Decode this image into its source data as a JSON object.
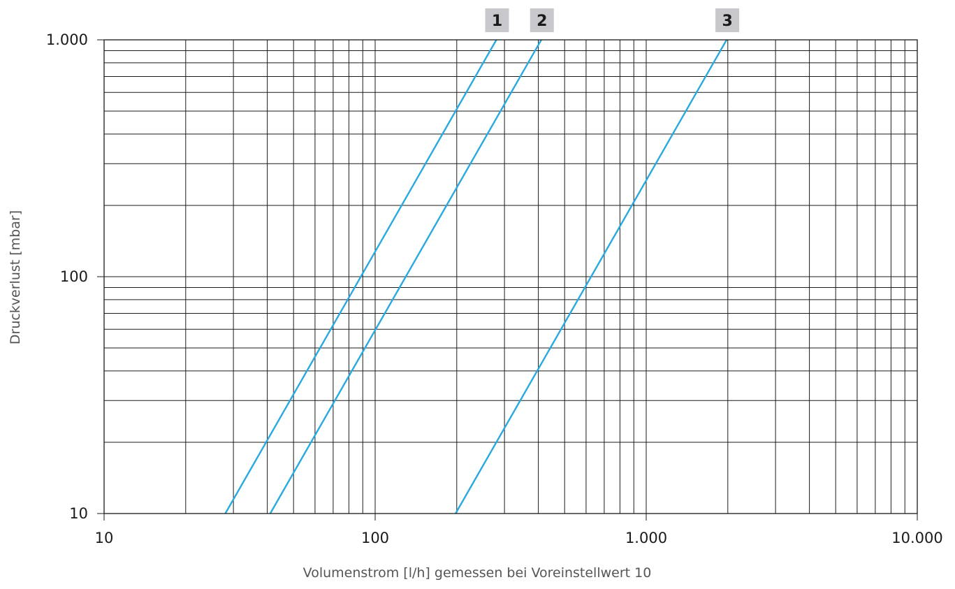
{
  "chart_data": {
    "type": "line",
    "xscale": "log",
    "yscale": "log",
    "xlabel": "Volumenstrom [l/h] gemessen bei Voreinstellwert 10",
    "ylabel": "Druckverlust [mbar]",
    "xlim": [
      10,
      10000
    ],
    "ylim": [
      10,
      1000
    ],
    "grid": true,
    "x_ticks": [
      {
        "value": 10,
        "label": "10"
      },
      {
        "value": 100,
        "label": "100"
      },
      {
        "value": 1000,
        "label": "1.000"
      },
      {
        "value": 10000,
        "label": "10.000"
      }
    ],
    "y_ticks": [
      {
        "value": 10,
        "label": "10"
      },
      {
        "value": 100,
        "label": "100"
      },
      {
        "value": 1000,
        "label": "1.000"
      }
    ],
    "series_color": "#29a9e0",
    "series": [
      {
        "label": "1",
        "points": [
          [
            28,
            10
          ],
          [
            280,
            1000
          ]
        ]
      },
      {
        "label": "2",
        "points": [
          [
            41,
            10
          ],
          [
            410,
            1000
          ]
        ]
      },
      {
        "label": "3",
        "points": [
          [
            198,
            10
          ],
          [
            1980,
            1000
          ]
        ]
      }
    ]
  }
}
